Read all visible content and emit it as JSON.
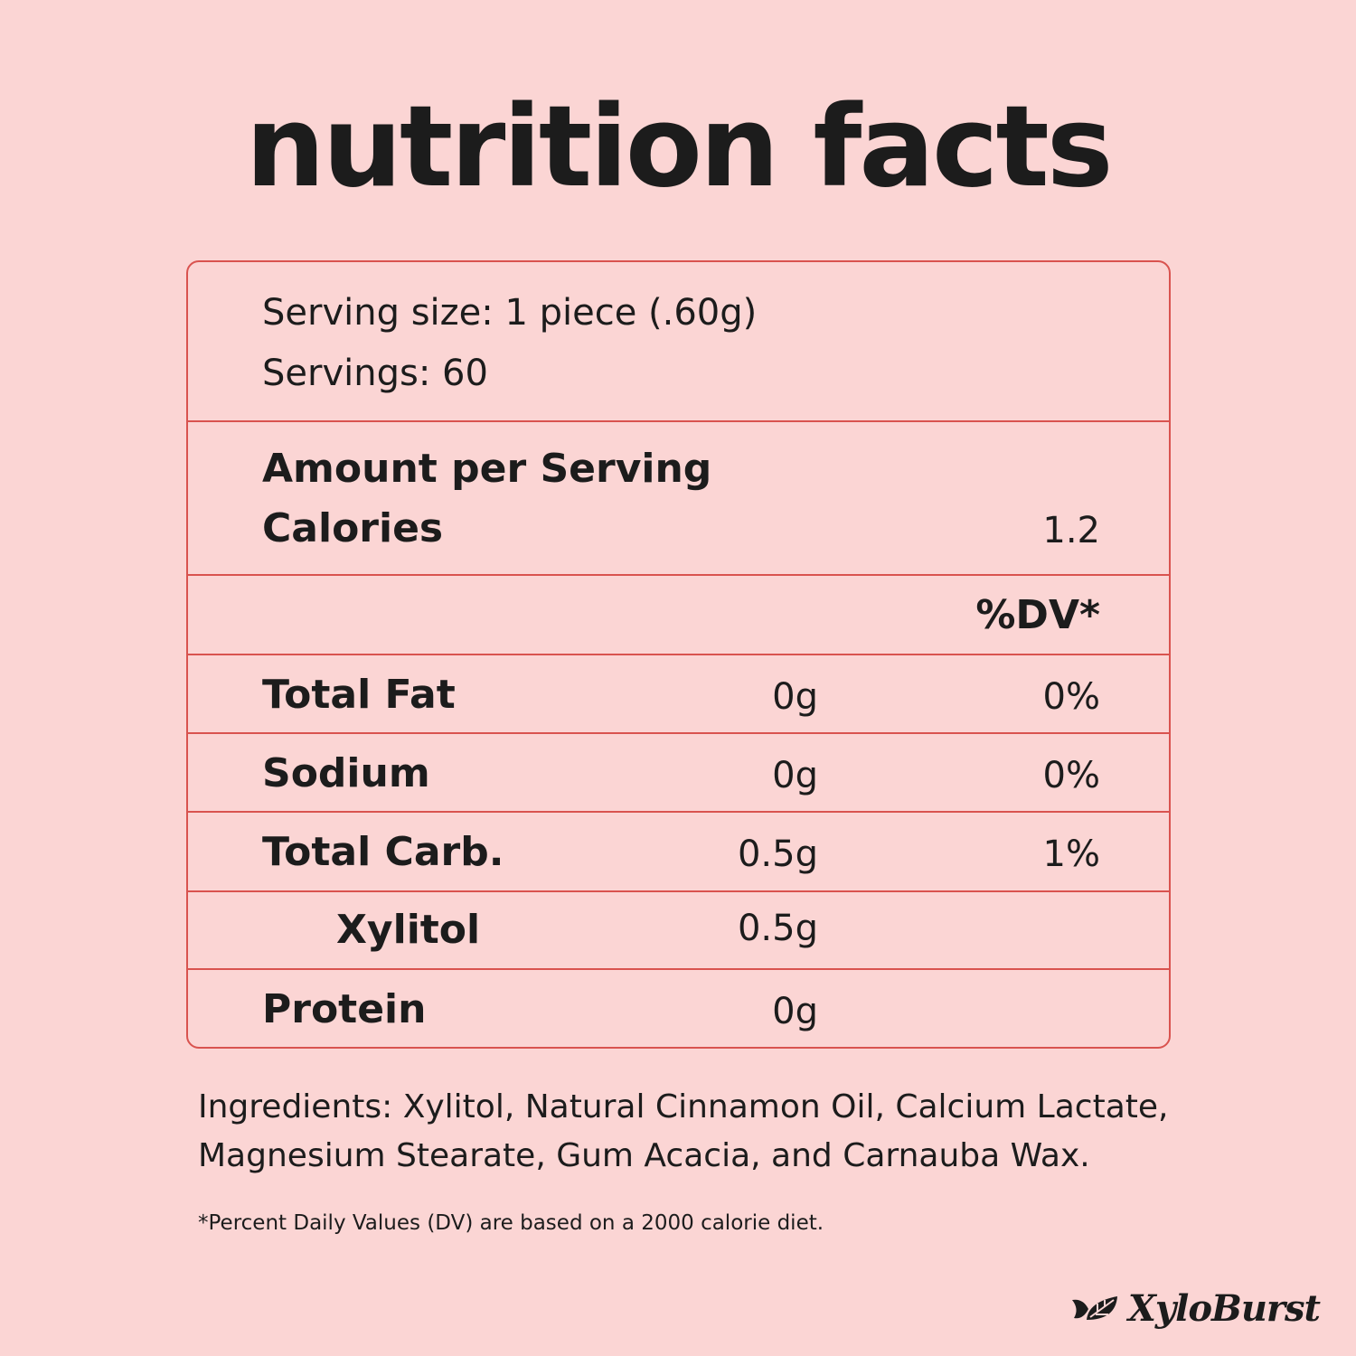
{
  "title": "nutrition facts",
  "serving": {
    "size": "Serving size: 1 piece (.60g)",
    "servings": "Servings: 60"
  },
  "amount": {
    "heading": "Amount per Serving",
    "calories_label": "Calories",
    "calories_value": "1.2"
  },
  "dv_header": "%DV*",
  "rows": [
    {
      "label": "Total Fat",
      "amount": "0g",
      "dv": "0%"
    },
    {
      "label": "Sodium",
      "amount": "0g",
      "dv": "0%"
    },
    {
      "label": "Total Carb.",
      "amount": "0.5g",
      "dv": "1%"
    },
    {
      "label": "Xylitol",
      "amount": "0.5g",
      "dv": ""
    },
    {
      "label": "Protein",
      "amount": "0g",
      "dv": ""
    }
  ],
  "ingredients": "Ingredients: Xylitol, Natural Cinnamon Oil, Calcium Lactate, Magnesium Stearate, Gum Acacia, and Carnauba Wax.",
  "footnote": "*Percent Daily Values (DV) are based on a 2000 calorie diet.",
  "brand": {
    "name": "XyloBurst",
    "icon": "leaves-icon"
  },
  "colors": {
    "background": "#fbd5d4",
    "border": "#d9534f",
    "text": "#1c1c1c"
  }
}
